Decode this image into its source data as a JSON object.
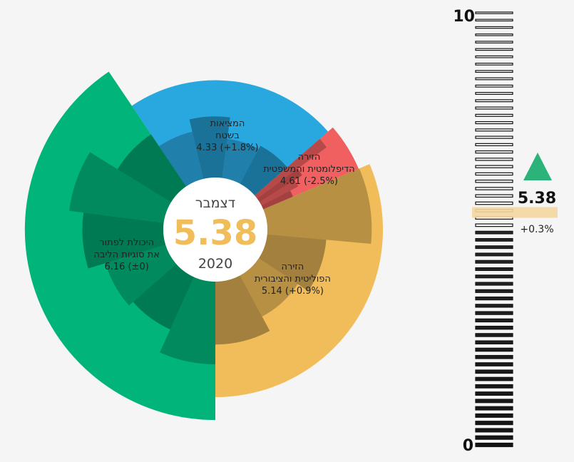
{
  "chart_data": {
    "type": "radial-bar",
    "center": {
      "month": "דצמבר",
      "value": "5.38",
      "year": "2020"
    },
    "scale": {
      "min": 0,
      "max": 10,
      "min_label": "0",
      "max_label": "10"
    },
    "overall": {
      "value": 5.38,
      "value_label": "5.38",
      "change_label": "+0.3%",
      "trend": "up"
    },
    "colors": {
      "political": "#f0bd5a",
      "diplomatic": "#f06060",
      "ground": "#29a8e0",
      "core": "#00b47a",
      "up": "#2bb37a",
      "marker": "#f5d7a1"
    },
    "segments": [
      {
        "id": "political",
        "label_lines": [
          "הזירה",
          "הפוליטית והציבורית",
          "5.14 (+0.9%)"
        ],
        "value": 5.14,
        "change": "+0.9%",
        "color": "#f0bd5a",
        "start_deg": 337,
        "end_deg": 90,
        "sub_values": [
          5.8,
          3.3,
          2.6,
          3.5
        ]
      },
      {
        "id": "diplomatic",
        "label_lines": [
          "הזירה",
          "הדיפלומטית והמשפטית",
          "4.61 (-2.5%)"
        ],
        "value": 4.61,
        "change": "-2.5%",
        "color": "#f06060",
        "start_deg": 319,
        "end_deg": 337,
        "sub_values": [
          4.8,
          2.8,
          2.3,
          1.8
        ]
      },
      {
        "id": "ground",
        "label_lines": [
          "המציאות",
          "בשטח",
          "4.33 (+1.8%)"
        ],
        "value": 4.33,
        "change": "+1.8%",
        "color": "#29a8e0",
        "start_deg": 236,
        "end_deg": 319,
        "sub_values": [
          2.7,
          3.4,
          2.2,
          2.4
        ]
      },
      {
        "id": "core",
        "label_lines": [
          "היכולת לפתור",
          "את סוגיות הליבה",
          "6.16 (±0)"
        ],
        "value": 6.16,
        "change": "±0",
        "color": "#00b47a",
        "start_deg": 90,
        "end_deg": 236,
        "sub_values": [
          4.6,
          3.2,
          3.5,
          4.5,
          5.3,
          3.5
        ]
      }
    ]
  }
}
